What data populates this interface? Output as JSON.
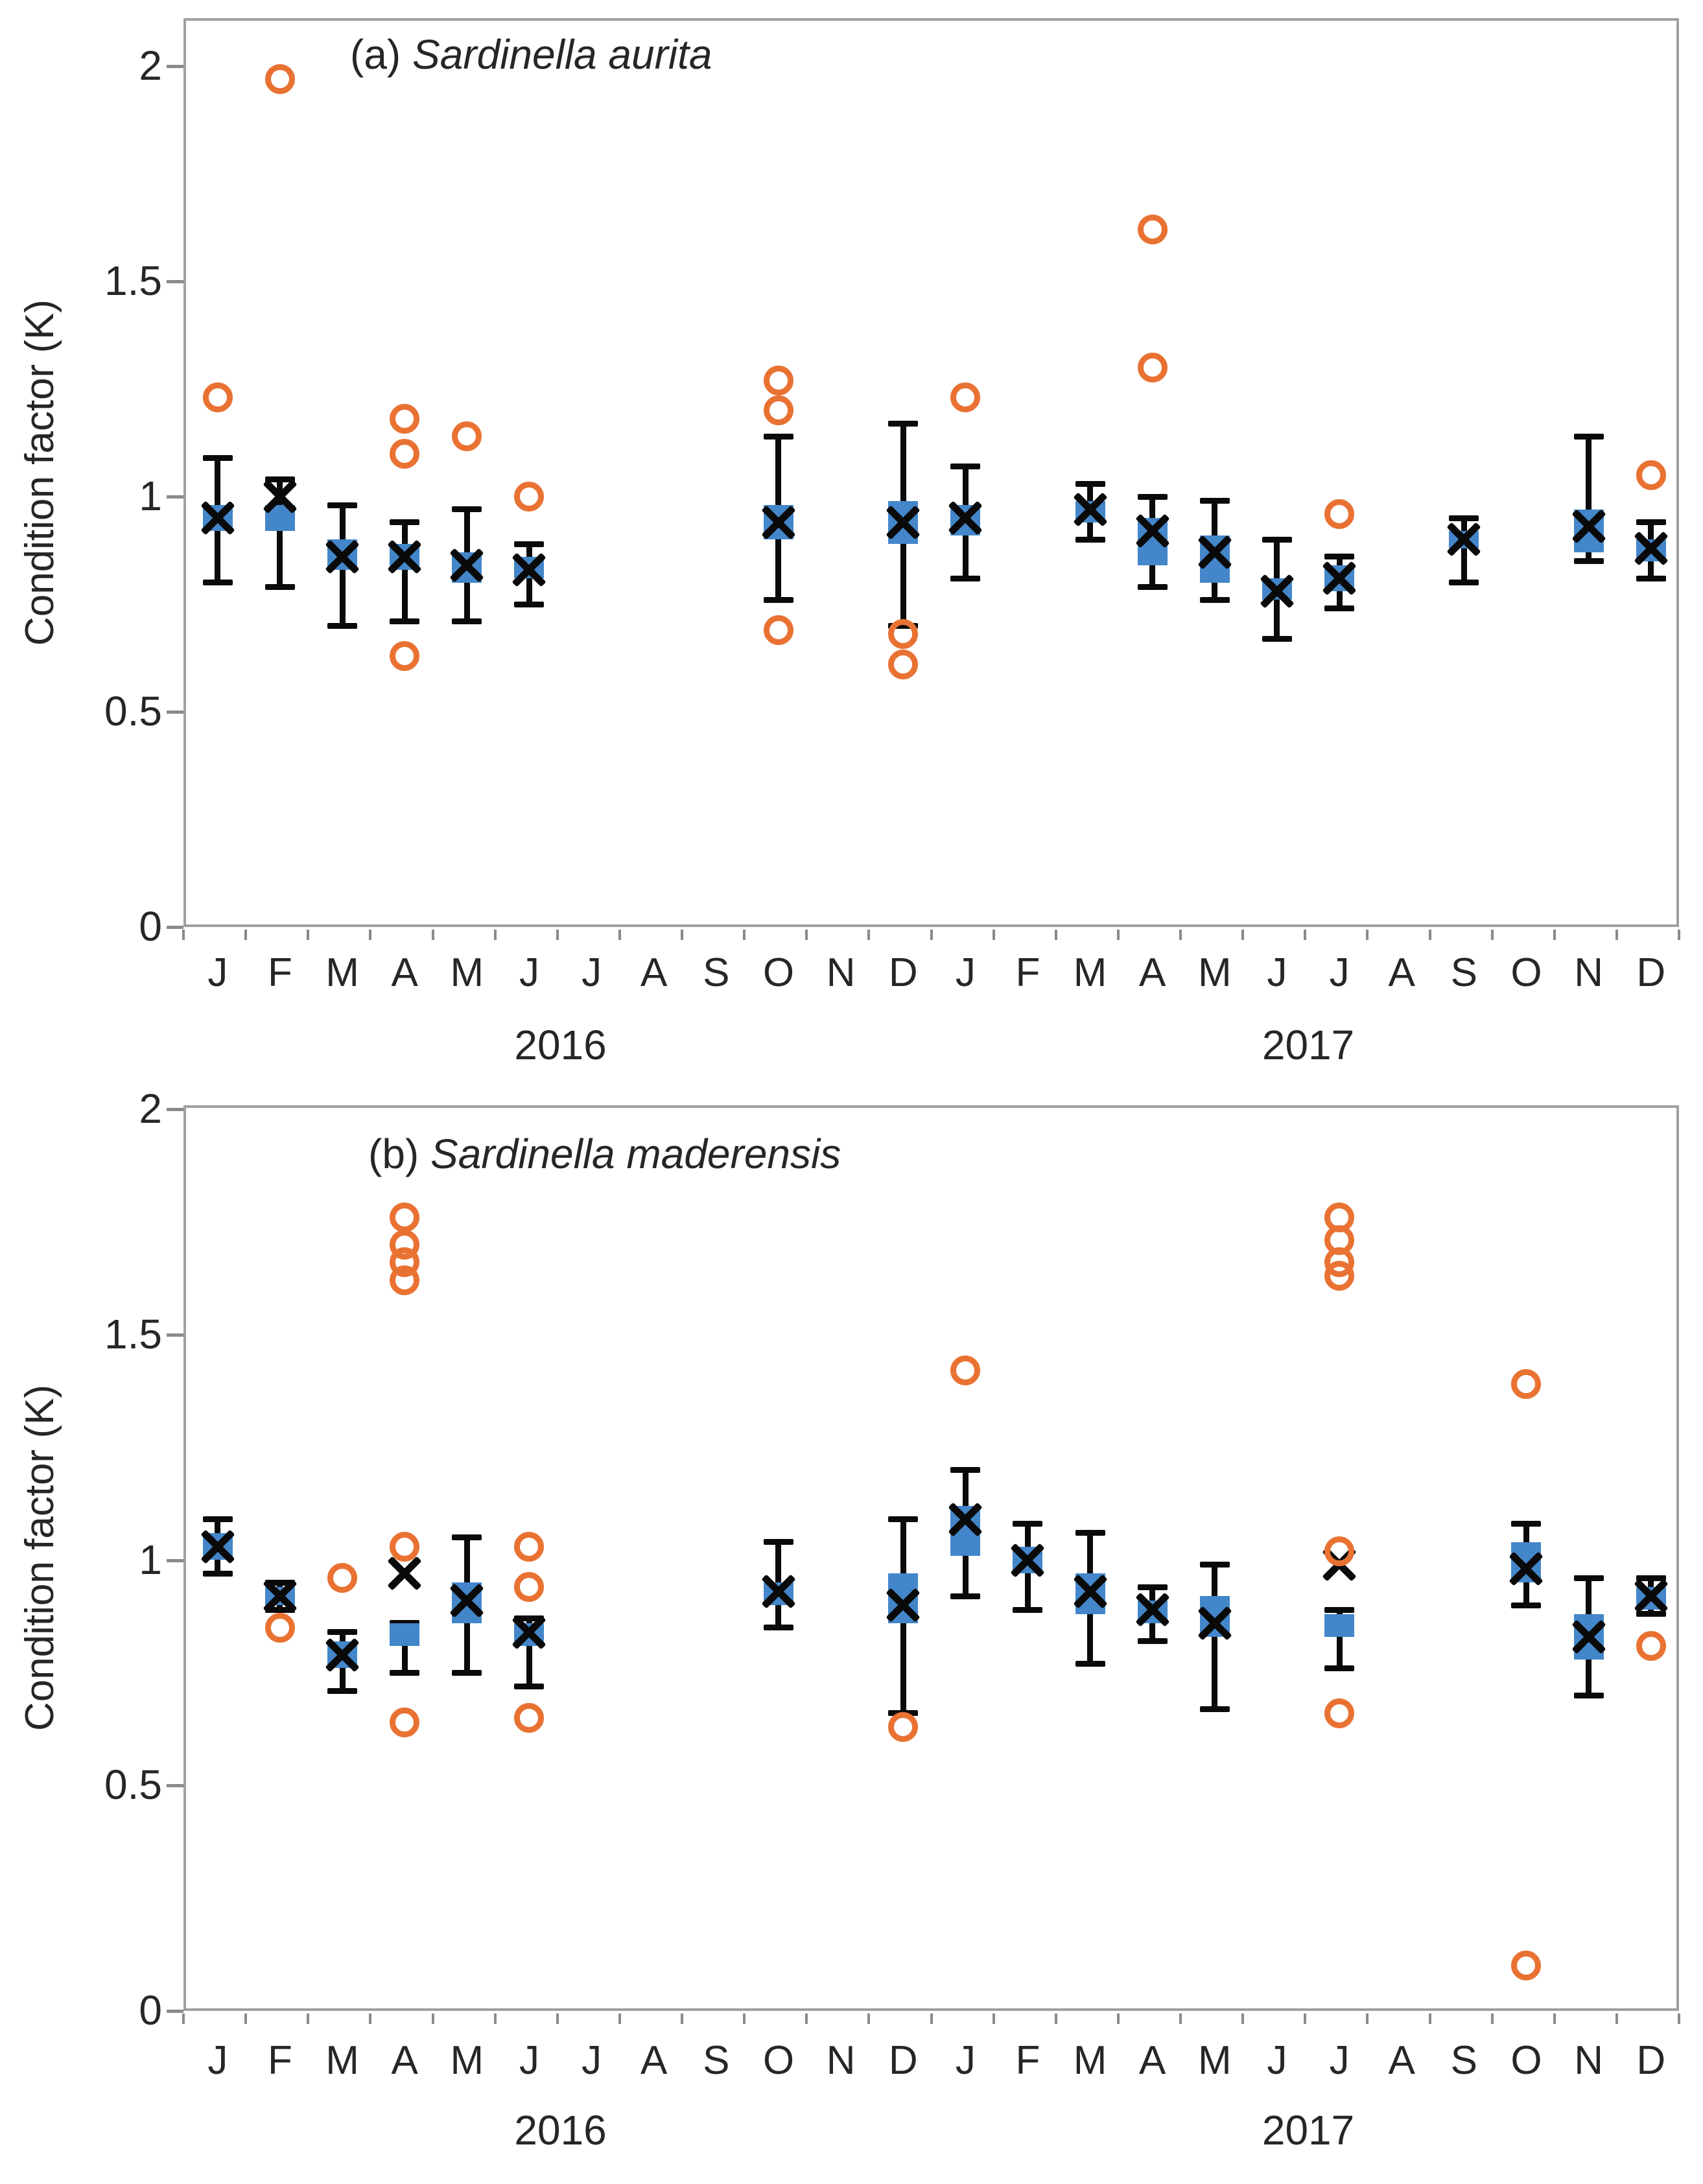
{
  "figure": {
    "background": "#ffffff",
    "colors": {
      "outlier_orange": "#E97233",
      "box_blue": "#4386C9",
      "marker_black": "#0a0a0a",
      "axis_gray": "#8a8a8a",
      "border_gray": "#a0a0a0",
      "text": "#262626"
    }
  },
  "month_labels": [
    "J",
    "F",
    "M",
    "A",
    "M",
    "J",
    "J",
    "A",
    "S",
    "O",
    "N",
    "D"
  ],
  "charts": [
    {
      "panel": "a",
      "title_prefix": "(a)",
      "title_species": "Sardinella aurita",
      "ylabel": "Condition factor (K)",
      "years": [
        {
          "label": "2016"
        },
        {
          "label": "2017"
        }
      ]
    },
    {
      "panel": "b",
      "title_prefix": "(b)",
      "title_species": "Sardinella maderensis",
      "ylabel": "Condition factor (K)",
      "years": [
        {
          "label": "2016"
        },
        {
          "label": "2017"
        }
      ]
    }
  ],
  "chart_data": [
    {
      "type": "box-whisker-scatter",
      "title": "(a) Sardinella aurita",
      "xlabel_groups": [
        "2016",
        "2017"
      ],
      "ylabel": "Condition factor (K)",
      "ylim": [
        0,
        2.11
      ],
      "yticks": [
        {
          "v": 0,
          "label": "0"
        },
        {
          "v": 0.5,
          "label": "0.5"
        },
        {
          "v": 1,
          "label": "1"
        },
        {
          "v": 1.5,
          "label": "1.5"
        },
        {
          "v": 2,
          "label": "2"
        }
      ],
      "legend": "none",
      "grid": false,
      "series_desc": {
        "x_marker": "mean",
        "blue_square": "interquartile box",
        "error_bars": "min-max whiskers",
        "orange_circles": "outliers"
      },
      "points": [
        {
          "m": 0,
          "mean": 0.95,
          "box": [
            0.92,
            0.98
          ],
          "whisker": [
            0.8,
            1.09
          ],
          "outliers": [
            1.23
          ]
        },
        {
          "m": 1,
          "mean": 1.0,
          "box": [
            0.92,
            0.98
          ],
          "whisker": [
            0.79,
            1.04
          ],
          "outliers": [
            1.97
          ]
        },
        {
          "m": 2,
          "mean": 0.86,
          "box": [
            0.83,
            0.9
          ],
          "whisker": [
            0.7,
            0.98
          ],
          "outliers": []
        },
        {
          "m": 3,
          "mean": 0.86,
          "box": [
            0.83,
            0.89
          ],
          "whisker": [
            0.71,
            0.94
          ],
          "outliers": [
            1.18,
            1.1,
            0.63
          ]
        },
        {
          "m": 4,
          "mean": 0.84,
          "box": [
            0.8,
            0.87
          ],
          "whisker": [
            0.71,
            0.97
          ],
          "outliers": [
            1.14
          ]
        },
        {
          "m": 5,
          "mean": 0.83,
          "box": [
            0.81,
            0.86
          ],
          "whisker": [
            0.75,
            0.89
          ],
          "outliers": [
            1.0
          ]
        },
        {
          "m": 9,
          "mean": 0.94,
          "box": [
            0.9,
            0.98
          ],
          "whisker": [
            0.76,
            1.14
          ],
          "outliers": [
            1.27,
            1.2,
            0.69
          ]
        },
        {
          "m": 11,
          "mean": 0.94,
          "box": [
            0.89,
            0.99
          ],
          "whisker": [
            0.7,
            1.17
          ],
          "outliers": [
            0.68,
            0.61
          ]
        },
        {
          "m": 12,
          "mean": 0.95,
          "box": [
            0.91,
            0.98
          ],
          "whisker": [
            0.81,
            1.07
          ],
          "outliers": [
            1.23
          ]
        },
        {
          "m": 14,
          "mean": 0.97,
          "box": [
            0.94,
            0.99
          ],
          "whisker": [
            0.9,
            1.03
          ],
          "outliers": []
        },
        {
          "m": 15,
          "mean": 0.92,
          "box": [
            0.84,
            0.95
          ],
          "whisker": [
            0.79,
            1.0
          ],
          "outliers": [
            1.62,
            1.3
          ]
        },
        {
          "m": 16,
          "mean": 0.87,
          "box": [
            0.8,
            0.91
          ],
          "whisker": [
            0.76,
            0.99
          ],
          "outliers": []
        },
        {
          "m": 17,
          "mean": 0.78,
          "box": [
            0.76,
            0.81
          ],
          "whisker": [
            0.67,
            0.9
          ],
          "outliers": []
        },
        {
          "m": 18,
          "mean": 0.81,
          "box": [
            0.78,
            0.84
          ],
          "whisker": [
            0.74,
            0.86
          ],
          "outliers": [
            0.96
          ]
        },
        {
          "m": 20,
          "mean": 0.9,
          "box": [
            0.88,
            0.92
          ],
          "whisker": [
            0.8,
            0.95
          ],
          "outliers": []
        },
        {
          "m": 22,
          "mean": 0.93,
          "box": [
            0.87,
            0.97
          ],
          "whisker": [
            0.85,
            1.14
          ],
          "outliers": []
        },
        {
          "m": 23,
          "mean": 0.88,
          "box": [
            0.85,
            0.9
          ],
          "whisker": [
            0.81,
            0.94
          ],
          "outliers": [
            1.05
          ]
        }
      ]
    },
    {
      "type": "box-whisker-scatter",
      "title": "(b) Sardinella maderensis",
      "xlabel_groups": [
        "2016",
        "2017"
      ],
      "ylabel": "Condition factor (K)",
      "ylim": [
        0,
        2.01
      ],
      "yticks": [
        {
          "v": 0,
          "label": "0"
        },
        {
          "v": 0.5,
          "label": "0.5"
        },
        {
          "v": 1,
          "label": "1"
        },
        {
          "v": 1.5,
          "label": "1.5"
        },
        {
          "v": 2,
          "label": "2"
        }
      ],
      "legend": "none",
      "grid": false,
      "series_desc": {
        "x_marker": "mean",
        "blue_square": "interquartile box",
        "error_bars": "min-max whiskers",
        "orange_circles": "outliers"
      },
      "points": [
        {
          "m": 0,
          "mean": 1.03,
          "box": [
            1.0,
            1.06
          ],
          "whisker": [
            0.97,
            1.09
          ],
          "outliers": []
        },
        {
          "m": 1,
          "mean": 0.92,
          "box": [
            0.9,
            0.94
          ],
          "whisker": [
            0.89,
            0.95
          ],
          "outliers": [
            0.85
          ]
        },
        {
          "m": 2,
          "mean": 0.79,
          "box": [
            0.76,
            0.82
          ],
          "whisker": [
            0.71,
            0.84
          ],
          "outliers": [
            0.96
          ]
        },
        {
          "m": 3,
          "mean": 0.97,
          "box": [
            0.81,
            0.86
          ],
          "whisker": [
            0.75,
            0.86
          ],
          "outliers": [
            1.76,
            1.7,
            1.66,
            1.62,
            1.03,
            0.64
          ]
        },
        {
          "m": 4,
          "mean": 0.91,
          "box": [
            0.86,
            0.95
          ],
          "whisker": [
            0.75,
            1.05
          ],
          "outliers": []
        },
        {
          "m": 5,
          "mean": 0.84,
          "box": [
            0.81,
            0.86
          ],
          "whisker": [
            0.72,
            0.87
          ],
          "outliers": [
            1.03,
            0.94,
            0.65
          ]
        },
        {
          "m": 9,
          "mean": 0.93,
          "box": [
            0.9,
            0.95
          ],
          "whisker": [
            0.85,
            1.04
          ],
          "outliers": []
        },
        {
          "m": 11,
          "mean": 0.9,
          "box": [
            0.86,
            0.97
          ],
          "whisker": [
            0.66,
            1.09
          ],
          "outliers": [
            0.63
          ]
        },
        {
          "m": 12,
          "mean": 1.09,
          "box": [
            1.01,
            1.12
          ],
          "whisker": [
            0.92,
            1.2
          ],
          "outliers": [
            1.42
          ]
        },
        {
          "m": 13,
          "mean": 1.0,
          "box": [
            0.97,
            1.03
          ],
          "whisker": [
            0.89,
            1.08
          ],
          "outliers": []
        },
        {
          "m": 14,
          "mean": 0.93,
          "box": [
            0.88,
            0.97
          ],
          "whisker": [
            0.77,
            1.06
          ],
          "outliers": []
        },
        {
          "m": 15,
          "mean": 0.89,
          "box": [
            0.86,
            0.91
          ],
          "whisker": [
            0.82,
            0.94
          ],
          "outliers": []
        },
        {
          "m": 16,
          "mean": 0.86,
          "box": [
            0.83,
            0.92
          ],
          "whisker": [
            0.67,
            0.99
          ],
          "outliers": []
        },
        {
          "m": 18,
          "mean": 0.99,
          "box": [
            0.83,
            0.88
          ],
          "whisker": [
            0.76,
            0.89
          ],
          "outliers": [
            1.76,
            1.71,
            1.66,
            1.63,
            1.02,
            0.66
          ]
        },
        {
          "m": 21,
          "mean": 0.98,
          "box": [
            0.95,
            1.04
          ],
          "whisker": [
            0.9,
            1.08
          ],
          "outliers": [
            1.39,
            0.1
          ]
        },
        {
          "m": 22,
          "mean": 0.83,
          "box": [
            0.78,
            0.88
          ],
          "whisker": [
            0.7,
            0.96
          ],
          "outliers": []
        },
        {
          "m": 23,
          "mean": 0.92,
          "box": [
            0.89,
            0.94
          ],
          "whisker": [
            0.88,
            0.96
          ],
          "outliers": [
            0.81
          ]
        }
      ]
    }
  ]
}
